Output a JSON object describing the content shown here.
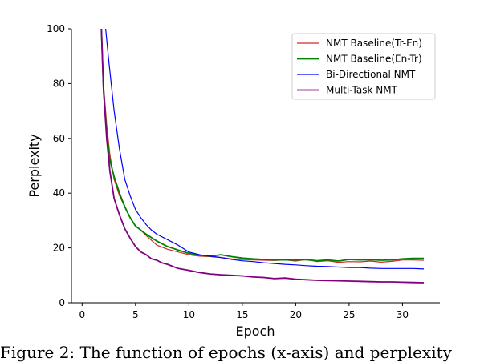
{
  "chart_data": {
    "type": "line",
    "title": "",
    "xlabel": "Epoch",
    "ylabel": "Perplexity",
    "xlim": [
      -1,
      33.5
    ],
    "ylim": [
      0,
      100
    ],
    "xticks": [
      0,
      5,
      10,
      15,
      20,
      25,
      30
    ],
    "yticks": [
      0,
      20,
      40,
      60,
      80,
      100
    ],
    "legend_position": "top-right",
    "grid": false,
    "series": [
      {
        "name": "NMT Baseline(Tr-En)",
        "color": "#d62728",
        "x": [
          1.8,
          2,
          2.3,
          2.6,
          3,
          3.5,
          4,
          4.5,
          5,
          5.5,
          6,
          7,
          8,
          9,
          10,
          11,
          12,
          13,
          14,
          15,
          16,
          17,
          18,
          19,
          20,
          21,
          22,
          23,
          24,
          25,
          26,
          27,
          28,
          29,
          30,
          31,
          32
        ],
        "y": [
          100,
          80,
          65,
          54,
          45,
          39,
          35,
          31,
          28,
          26.5,
          24.5,
          21,
          19.5,
          18.5,
          17.5,
          17,
          16.8,
          16.5,
          16,
          15.8,
          15.6,
          15.5,
          15.4,
          15.6,
          15.2,
          15.8,
          15,
          15.3,
          14.7,
          15,
          14.9,
          15.2,
          14.8,
          15.1,
          15.6,
          15.6,
          15.5
        ]
      },
      {
        "name": "NMT Baseline(En-Tr)",
        "color": "#008000",
        "x": [
          1.8,
          2,
          2.3,
          2.6,
          3,
          3.5,
          4,
          4.5,
          5,
          5.5,
          6,
          7,
          8,
          9,
          10,
          11,
          12,
          13,
          14,
          15,
          16,
          17,
          18,
          19,
          20,
          21,
          22,
          23,
          24,
          25,
          26,
          27,
          28,
          29,
          30,
          31,
          32
        ],
        "y": [
          100,
          78,
          62,
          52,
          46,
          40,
          35,
          31,
          28,
          26.5,
          25,
          22.5,
          20.5,
          19.2,
          18,
          17.3,
          17,
          17.5,
          16.8,
          16.3,
          16,
          15.8,
          15.6,
          15.6,
          15.6,
          15.7,
          15.3,
          15.6,
          15.2,
          15.8,
          15.6,
          15.7,
          15.5,
          15.6,
          16,
          16.2,
          16.2
        ]
      },
      {
        "name": "Bi-Directional NMT",
        "color": "#0000ff",
        "x": [
          2.2,
          2.5,
          3,
          3.5,
          4,
          4.5,
          5,
          5.5,
          6,
          6.5,
          7,
          8,
          9,
          10,
          11,
          12,
          13,
          14,
          15,
          16,
          17,
          18,
          19,
          20,
          21,
          22,
          23,
          24,
          25,
          26,
          27,
          28,
          29,
          30,
          31,
          32
        ],
        "y": [
          100,
          88,
          70,
          56,
          45,
          39,
          34,
          31,
          28.5,
          26.5,
          25,
          23,
          21,
          18.5,
          17.5,
          17,
          16.5,
          15.8,
          15.3,
          15,
          14.6,
          14.3,
          14,
          13.8,
          13.5,
          13.3,
          13.2,
          13,
          12.8,
          12.8,
          12.6,
          12.5,
          12.5,
          12.5,
          12.5,
          12.3
        ]
      },
      {
        "name": "Multi-Task NMT",
        "color": "#800080",
        "x": [
          1.8,
          2,
          2.3,
          2.6,
          3,
          3.5,
          4,
          4.5,
          5,
          5.5,
          6,
          6.5,
          7,
          7.5,
          8,
          9,
          10,
          11,
          12,
          13,
          14,
          15,
          16,
          17,
          18,
          19,
          20,
          21,
          22,
          23,
          24,
          25,
          26,
          27,
          28,
          29,
          30,
          31,
          32
        ],
        "y": [
          100,
          78,
          60,
          48,
          38,
          32,
          27,
          23.5,
          20.5,
          18.5,
          17.5,
          16,
          15.5,
          14.5,
          14,
          12.5,
          11.8,
          11,
          10.5,
          10.2,
          10,
          9.8,
          9.4,
          9.2,
          8.8,
          9,
          8.6,
          8.4,
          8.2,
          8.1,
          8,
          7.9,
          7.8,
          7.7,
          7.6,
          7.6,
          7.5,
          7.4,
          7.3
        ]
      }
    ]
  },
  "caption": "Figure 2: The function of epochs (x-axis) and perplexity"
}
